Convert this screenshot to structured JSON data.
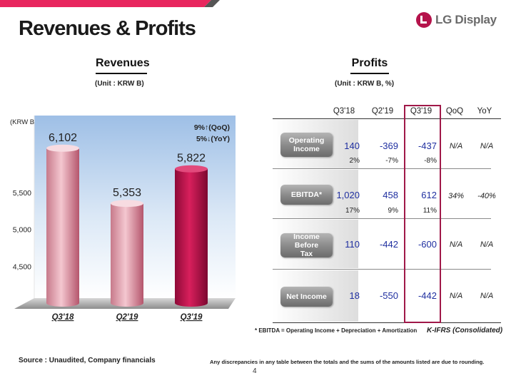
{
  "header": {
    "title": "Revenues & Profits",
    "logo_text": "LG Display",
    "brand_color": "#b5134b",
    "accent_stripe_color": "#e8265e"
  },
  "revenues": {
    "title": "Revenues",
    "unit": "(Unit : KRW B)",
    "axis_unit": "(KRW B)",
    "change_qoq": "9%↑(QoQ)",
    "change_yoy": "5%↓(YoY)"
  },
  "chart_data": {
    "type": "bar",
    "title": "Revenues",
    "ylabel": "(KRW B)",
    "xlabel": "",
    "categories": [
      "Q3'18",
      "Q2'19",
      "Q3'19"
    ],
    "values": [
      6102,
      5353,
      5822
    ],
    "value_labels": [
      "6,102",
      "5,353",
      "5,822"
    ],
    "colors": [
      "#e4a0ae",
      "#e4a0ae",
      "#c0114a"
    ],
    "y_ticks": [
      4500,
      5000,
      5500
    ],
    "y_tick_labels": [
      "4,500",
      "5,000",
      "5,500"
    ],
    "ylim": [
      4000,
      6500
    ],
    "grid": false
  },
  "profits": {
    "title": "Profits",
    "unit": "(Unit : KRW B, %)",
    "columns": [
      "Q3'18",
      "Q2'19",
      "Q3'19",
      "QoQ",
      "YoY"
    ],
    "rows": [
      {
        "label": "Operating Income",
        "values": [
          "140",
          "-369",
          "-437"
        ],
        "margins": [
          "2%",
          "-7%",
          "-8%"
        ],
        "qoq": "N/A",
        "yoy": "N/A"
      },
      {
        "label": "EBITDA*",
        "values": [
          "1,020",
          "458",
          "612"
        ],
        "margins": [
          "17%",
          "9%",
          "11%"
        ],
        "qoq": "34%",
        "yoy": "-40%"
      },
      {
        "label": "Income Before Tax",
        "values": [
          "110",
          "-442",
          "-600"
        ],
        "margins": [
          "",
          "",
          ""
        ],
        "qoq": "N/A",
        "yoy": "N/A"
      },
      {
        "label": "Net Income",
        "values": [
          "18",
          "-550",
          "-442"
        ],
        "margins": [
          "",
          "",
          ""
        ],
        "qoq": "N/A",
        "yoy": "N/A"
      }
    ],
    "footnote": "* EBITDA = Operating Income + Depreciation + Amortization",
    "standard": "K-IFRS (Consolidated)"
  },
  "footer": {
    "source": "Source : Unaudited, Company financials",
    "disclaimer": "Any discrepancies in any table between the totals and the sums of the amounts listed are due to rounding.",
    "page_number": "4"
  }
}
